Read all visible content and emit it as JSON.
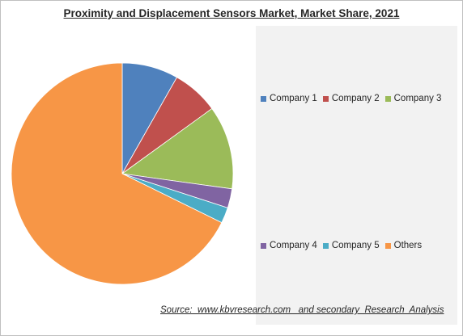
{
  "chart_data": {
    "type": "pie",
    "title": "Proximity and Displacement Sensors Market, Market Share, 2021",
    "categories": [
      "Company 1",
      "Company 2",
      "Company 3",
      "Company 4",
      "Company 5",
      "Others"
    ],
    "values": [
      8.2,
      6.8,
      12.2,
      2.8,
      2.3,
      67.7
    ],
    "unit": "%",
    "colors": [
      "#4f81bd",
      "#c0504d",
      "#9bbb59",
      "#8064a2",
      "#4bacc6",
      "#f79646"
    ],
    "legend_position": "right",
    "start_angle_deg": 0,
    "direction": "clockwise"
  },
  "source": "Source:  www.kbvresearch.com   and secondary  Research  Analysis"
}
